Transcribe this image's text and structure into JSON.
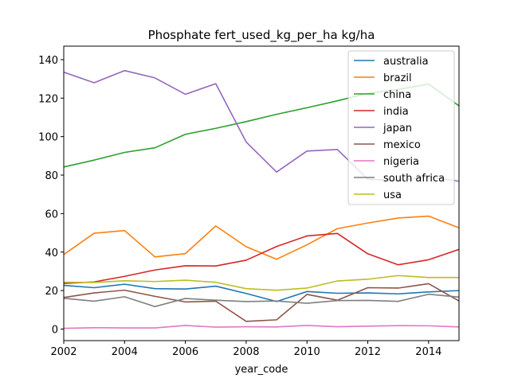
{
  "chart_data": {
    "type": "line",
    "title": "Phosphate fert_used_kg_per_ha kg/ha",
    "xlabel": "year_code",
    "ylabel": "",
    "xlim": [
      2002,
      2015
    ],
    "ylim": [
      -6,
      147
    ],
    "x_ticks": [
      2002,
      2004,
      2006,
      2008,
      2010,
      2012,
      2014
    ],
    "y_ticks": [
      0,
      20,
      40,
      60,
      80,
      100,
      120,
      140
    ],
    "grid": false,
    "legend_position": "top-right",
    "x": [
      2002,
      2003,
      2004,
      2005,
      2006,
      2007,
      2008,
      2009,
      2010,
      2011,
      2012,
      2013,
      2014,
      2015
    ],
    "series": [
      {
        "name": "australia",
        "color": "#1f77b4",
        "values": [
          22.7,
          21.5,
          23.3,
          21.0,
          20.8,
          22.3,
          18.5,
          14.3,
          19.5,
          18.6,
          18.8,
          18.3,
          19.3,
          20.0
        ]
      },
      {
        "name": "brazil",
        "color": "#ff7f0e",
        "values": [
          38.7,
          49.8,
          51.2,
          37.5,
          39.2,
          53.6,
          42.8,
          36.3,
          43.8,
          52.2,
          55.1,
          57.7,
          58.7,
          52.6
        ]
      },
      {
        "name": "china",
        "color": "#2ca02c",
        "values": [
          84.2,
          87.8,
          91.8,
          94.2,
          101.2,
          104.3,
          107.8,
          111.6,
          115.0,
          118.6,
          122.5,
          124.5,
          127.3,
          116.0
        ]
      },
      {
        "name": "india",
        "color": "#d62728",
        "values": [
          23.7,
          24.5,
          27.4,
          30.7,
          32.9,
          32.8,
          35.8,
          42.9,
          48.4,
          49.7,
          39.1,
          33.4,
          36.0,
          41.4
        ]
      },
      {
        "name": "japan",
        "color": "#9467bd",
        "values": [
          133.5,
          128.0,
          134.3,
          130.5,
          122.0,
          127.5,
          97.2,
          81.6,
          92.5,
          93.3,
          77.8,
          77.2,
          79.2,
          76.8
        ]
      },
      {
        "name": "mexico",
        "color": "#8c564b",
        "values": [
          16.4,
          18.8,
          20.2,
          17.0,
          14.1,
          14.5,
          4.0,
          4.8,
          18.0,
          15.0,
          21.5,
          21.3,
          23.6,
          14.6
        ]
      },
      {
        "name": "nigeria",
        "color": "#e377c2",
        "values": [
          0.4,
          0.7,
          0.6,
          0.6,
          1.9,
          1.0,
          1.2,
          1.1,
          1.9,
          1.2,
          1.5,
          1.8,
          1.7,
          1.1
        ]
      },
      {
        "name": "south africa",
        "color": "#7f7f7f",
        "values": [
          16.0,
          14.5,
          16.8,
          11.7,
          15.9,
          15.0,
          14.3,
          14.6,
          13.4,
          14.8,
          14.9,
          14.4,
          18.1,
          16.6
        ]
      },
      {
        "name": "usa",
        "color": "#bcbd22",
        "values": [
          24.3,
          24.2,
          25.1,
          24.7,
          25.4,
          24.3,
          21.0,
          20.2,
          21.3,
          25.0,
          25.9,
          27.8,
          26.8,
          26.8
        ]
      }
    ]
  }
}
